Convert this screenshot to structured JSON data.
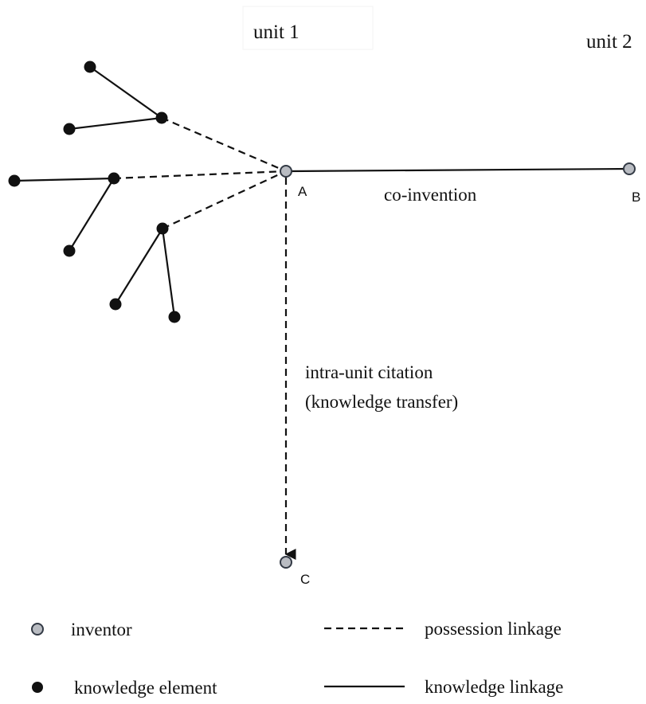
{
  "units": {
    "unit1": "unit 1",
    "unit2": "unit 2"
  },
  "inventors": {
    "a": "A",
    "b": "B",
    "c": "C"
  },
  "edge_labels": {
    "co_invention": "co-invention",
    "citation_line1": "intra-unit citation",
    "citation_line2": "(knowledge transfer)"
  },
  "legend": {
    "inventor": "inventor",
    "knowledge_element": "knowledge element",
    "possession_linkage": "possession linkage",
    "knowledge_linkage": "knowledge linkage"
  },
  "colors": {
    "inventor_fill": "#b9bcc2",
    "inventor_stroke": "#333a45",
    "knowledge_element": "#111111",
    "line": "#111111"
  }
}
